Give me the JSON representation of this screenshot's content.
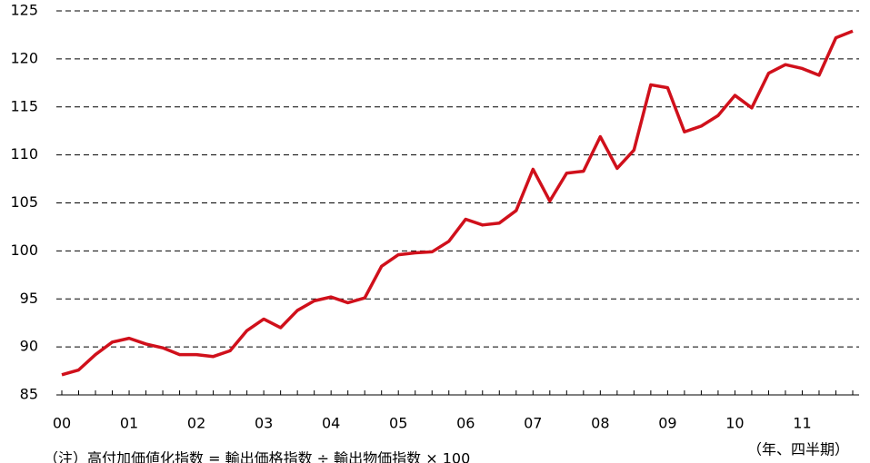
{
  "chart_data": {
    "type": "line",
    "categories": [
      "00",
      null,
      null,
      null,
      "01",
      null,
      null,
      null,
      "02",
      null,
      null,
      null,
      "03",
      null,
      null,
      null,
      "04",
      null,
      null,
      null,
      "05",
      null,
      null,
      null,
      "06",
      null,
      null,
      null,
      "07",
      null,
      null,
      null,
      "08",
      null,
      null,
      null,
      "09",
      null,
      null,
      null,
      "10",
      null,
      null,
      null,
      "11",
      null,
      null,
      null
    ],
    "series": [
      {
        "color": "#d0101b",
        "values": [
          87.1,
          87.6,
          89.2,
          90.5,
          90.9,
          90.3,
          89.9,
          89.2,
          89.2,
          89.0,
          89.6,
          91.7,
          92.9,
          92.0,
          93.8,
          94.8,
          95.2,
          94.6,
          95.1,
          98.4,
          99.6,
          99.8,
          99.9,
          101.0,
          103.3,
          102.7,
          102.9,
          104.2,
          108.5,
          105.2,
          108.1,
          108.3,
          111.9,
          108.6,
          110.5,
          117.3,
          117.0,
          112.4,
          113.0,
          114.1,
          116.2,
          114.9,
          118.5,
          119.4,
          119.0,
          118.3,
          122.2,
          122.9
        ]
      }
    ],
    "ylim": [
      85,
      125
    ],
    "yticks": [
      85,
      90,
      95,
      100,
      105,
      110,
      115,
      120,
      125
    ],
    "grid": true,
    "x_label": "（年、四半期）",
    "note": "（注）高付加価値化指数 = 輸出価格指数 ÷ 輸出物価指数 × 100"
  }
}
